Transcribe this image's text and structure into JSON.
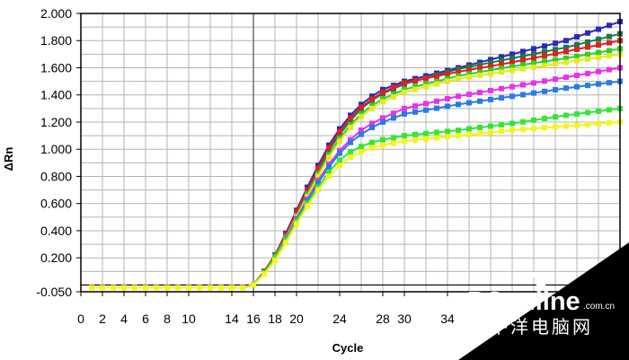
{
  "chart_data": {
    "type": "line",
    "xlabel": "Cycle",
    "ylabel": "ΔRn",
    "xlim": [
      0,
      50
    ],
    "ylim": [
      -0.05,
      2.0
    ],
    "grid": true,
    "x_ticks": [
      0,
      2,
      4,
      6,
      8,
      10,
      14,
      16,
      18,
      20,
      24,
      28,
      30,
      34
    ],
    "x_tick_labels": [
      "0",
      "2",
      "4",
      "6",
      "8",
      "10",
      "14",
      "16",
      "18",
      "20",
      "24",
      "28",
      "30",
      "34"
    ],
    "y_ticks": [
      -0.05,
      0.2,
      0.4,
      0.6,
      0.8,
      1.0,
      1.2,
      1.4,
      1.6,
      1.8,
      2.0
    ],
    "y_tick_labels": [
      "-0.050",
      "0.200",
      "0.400",
      "0.600",
      "0.800",
      "1.000",
      "1.200",
      "1.400",
      "1.600",
      "1.800",
      "2.000"
    ],
    "threshold": 0.0,
    "series": [
      {
        "color": "#2b2bb8",
        "values": [
          [
            1,
            -0.02
          ],
          [
            15,
            -0.02
          ],
          [
            16,
            0.0
          ],
          [
            17,
            0.1
          ],
          [
            18,
            0.22
          ],
          [
            19,
            0.38
          ],
          [
            20,
            0.55
          ],
          [
            21,
            0.72
          ],
          [
            22,
            0.88
          ],
          [
            23,
            1.03
          ],
          [
            24,
            1.15
          ],
          [
            25,
            1.25
          ],
          [
            26,
            1.33
          ],
          [
            27,
            1.39
          ],
          [
            28,
            1.44
          ],
          [
            30,
            1.5
          ],
          [
            35,
            1.6
          ],
          [
            40,
            1.7
          ],
          [
            45,
            1.8
          ],
          [
            50,
            1.94
          ]
        ]
      },
      {
        "color": "#1a7a4a",
        "values": [
          [
            1,
            -0.02
          ],
          [
            15,
            -0.02
          ],
          [
            16,
            0.0
          ],
          [
            17,
            0.1
          ],
          [
            18,
            0.22
          ],
          [
            19,
            0.37
          ],
          [
            20,
            0.53
          ],
          [
            21,
            0.69
          ],
          [
            22,
            0.84
          ],
          [
            23,
            0.99
          ],
          [
            24,
            1.11
          ],
          [
            25,
            1.21
          ],
          [
            26,
            1.3
          ],
          [
            27,
            1.36
          ],
          [
            28,
            1.41
          ],
          [
            30,
            1.48
          ],
          [
            35,
            1.59
          ],
          [
            40,
            1.67
          ],
          [
            45,
            1.75
          ],
          [
            50,
            1.85
          ]
        ]
      },
      {
        "color": "#e02020",
        "values": [
          [
            1,
            -0.02
          ],
          [
            15,
            -0.02
          ],
          [
            16,
            0.0
          ],
          [
            17,
            0.1
          ],
          [
            18,
            0.22
          ],
          [
            19,
            0.37
          ],
          [
            20,
            0.54
          ],
          [
            21,
            0.7
          ],
          [
            22,
            0.86
          ],
          [
            23,
            1.01
          ],
          [
            24,
            1.13
          ],
          [
            25,
            1.23
          ],
          [
            26,
            1.31
          ],
          [
            27,
            1.37
          ],
          [
            28,
            1.42
          ],
          [
            30,
            1.49
          ],
          [
            35,
            1.57
          ],
          [
            40,
            1.64
          ],
          [
            45,
            1.72
          ],
          [
            50,
            1.8
          ]
        ]
      },
      {
        "color": "#2ad12a",
        "values": [
          [
            1,
            -0.02
          ],
          [
            15,
            -0.02
          ],
          [
            16,
            0.0
          ],
          [
            17,
            0.09
          ],
          [
            18,
            0.21
          ],
          [
            19,
            0.35
          ],
          [
            20,
            0.51
          ],
          [
            21,
            0.67
          ],
          [
            22,
            0.82
          ],
          [
            23,
            0.96
          ],
          [
            24,
            1.08
          ],
          [
            25,
            1.18
          ],
          [
            26,
            1.26
          ],
          [
            27,
            1.32
          ],
          [
            28,
            1.37
          ],
          [
            30,
            1.44
          ],
          [
            35,
            1.54
          ],
          [
            40,
            1.61
          ],
          [
            45,
            1.67
          ],
          [
            50,
            1.74
          ]
        ]
      },
      {
        "color": "#e8e820",
        "values": [
          [
            1,
            -0.02
          ],
          [
            15,
            -0.02
          ],
          [
            16,
            0.0
          ],
          [
            17,
            0.09
          ],
          [
            18,
            0.2
          ],
          [
            19,
            0.34
          ],
          [
            20,
            0.5
          ],
          [
            21,
            0.65
          ],
          [
            22,
            0.8
          ],
          [
            23,
            0.94
          ],
          [
            24,
            1.06
          ],
          [
            25,
            1.16
          ],
          [
            26,
            1.24
          ],
          [
            27,
            1.3
          ],
          [
            28,
            1.35
          ],
          [
            30,
            1.42
          ],
          [
            35,
            1.52
          ],
          [
            40,
            1.58
          ],
          [
            45,
            1.64
          ],
          [
            50,
            1.7
          ]
        ]
      },
      {
        "color": "#e832e8",
        "values": [
          [
            1,
            -0.02
          ],
          [
            15,
            -0.02
          ],
          [
            16,
            0.0
          ],
          [
            17,
            0.09
          ],
          [
            18,
            0.2
          ],
          [
            19,
            0.34
          ],
          [
            20,
            0.49
          ],
          [
            21,
            0.63
          ],
          [
            22,
            0.77
          ],
          [
            23,
            0.89
          ],
          [
            24,
            0.99
          ],
          [
            25,
            1.07
          ],
          [
            26,
            1.14
          ],
          [
            27,
            1.19
          ],
          [
            28,
            1.23
          ],
          [
            30,
            1.3
          ],
          [
            35,
            1.39
          ],
          [
            40,
            1.46
          ],
          [
            45,
            1.53
          ],
          [
            50,
            1.6
          ]
        ]
      },
      {
        "color": "#2a7ae8",
        "values": [
          [
            1,
            -0.02
          ],
          [
            15,
            -0.02
          ],
          [
            16,
            0.0
          ],
          [
            17,
            0.09
          ],
          [
            18,
            0.2
          ],
          [
            19,
            0.33
          ],
          [
            20,
            0.48
          ],
          [
            21,
            0.62
          ],
          [
            22,
            0.75
          ],
          [
            23,
            0.87
          ],
          [
            24,
            0.97
          ],
          [
            25,
            1.05
          ],
          [
            26,
            1.11
          ],
          [
            27,
            1.16
          ],
          [
            28,
            1.2
          ],
          [
            30,
            1.26
          ],
          [
            35,
            1.33
          ],
          [
            40,
            1.39
          ],
          [
            45,
            1.45
          ],
          [
            50,
            1.5
          ]
        ]
      },
      {
        "color": "#32e832",
        "values": [
          [
            1,
            -0.02
          ],
          [
            15,
            -0.02
          ],
          [
            16,
            0.0
          ],
          [
            17,
            0.09
          ],
          [
            18,
            0.2
          ],
          [
            19,
            0.33
          ],
          [
            20,
            0.47
          ],
          [
            21,
            0.6
          ],
          [
            22,
            0.72
          ],
          [
            23,
            0.83
          ],
          [
            24,
            0.92
          ],
          [
            25,
            0.98
          ],
          [
            26,
            1.02
          ],
          [
            27,
            1.05
          ],
          [
            28,
            1.07
          ],
          [
            30,
            1.1
          ],
          [
            35,
            1.14
          ],
          [
            40,
            1.19
          ],
          [
            45,
            1.25
          ],
          [
            50,
            1.3
          ]
        ]
      },
      {
        "color": "#f5f51a",
        "values": [
          [
            1,
            -0.02
          ],
          [
            15,
            -0.02
          ],
          [
            16,
            0.0
          ],
          [
            17,
            0.08
          ],
          [
            18,
            0.18
          ],
          [
            19,
            0.31
          ],
          [
            20,
            0.45
          ],
          [
            21,
            0.58
          ],
          [
            22,
            0.7
          ],
          [
            23,
            0.8
          ],
          [
            24,
            0.88
          ],
          [
            25,
            0.94
          ],
          [
            26,
            0.98
          ],
          [
            27,
            1.01
          ],
          [
            28,
            1.03
          ],
          [
            30,
            1.06
          ],
          [
            35,
            1.1
          ],
          [
            40,
            1.14
          ],
          [
            45,
            1.17
          ],
          [
            50,
            1.2
          ]
        ]
      }
    ]
  },
  "watermark": {
    "brand": "PConline",
    "domain": ".com.cn",
    "tagline": "太平洋电脑网"
  }
}
